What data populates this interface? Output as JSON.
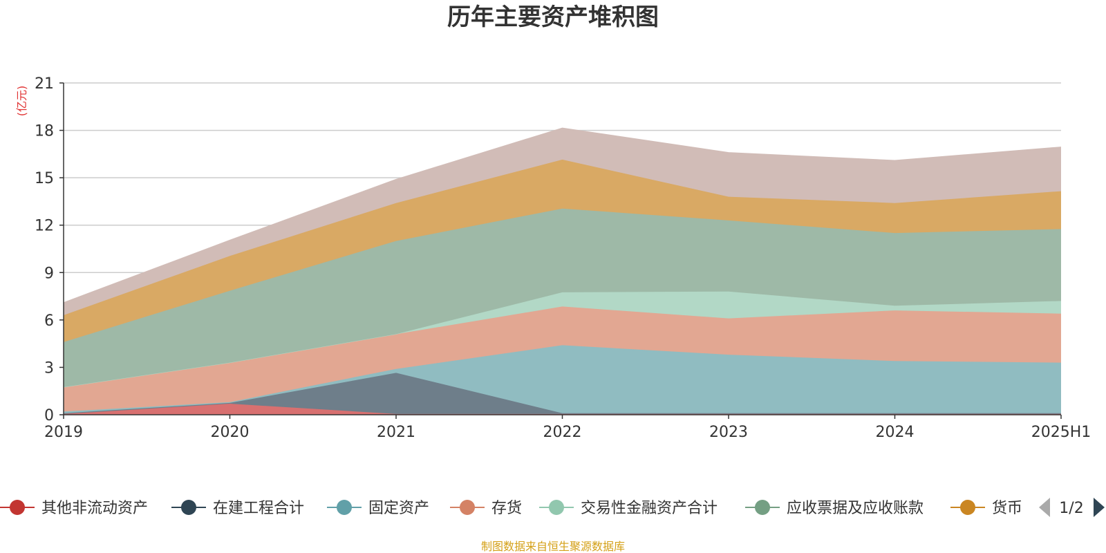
{
  "colors": {
    "grid": "#cccccc",
    "axis": "#333333",
    "unit_label": "#e03030",
    "source_text": "#d4a017",
    "pager_prev": "#aaaaaa",
    "pager_next": "#2f4554"
  },
  "chart_data": {
    "type": "area",
    "stacked": true,
    "title": "历年主要资产堆积图",
    "ylabel": "(亿元)",
    "xlabel": "",
    "categories": [
      "2019",
      "2020",
      "2021",
      "2022",
      "2023",
      "2024",
      "2025H1"
    ],
    "ylim": [
      0,
      21
    ],
    "yticks": [
      0,
      3,
      6,
      9,
      12,
      15,
      18,
      21
    ],
    "grid": true,
    "legend_position": "bottom",
    "series": [
      {
        "name": "其他非流动资产",
        "color": "#c23531",
        "area_color": "#d87070",
        "values": [
          0.05,
          0.7,
          0.05,
          0.05,
          0.05,
          0.05,
          0.05
        ],
        "in_legend": true
      },
      {
        "name": "在建工程合计",
        "color": "#2f4554",
        "area_color": "#6e7e8a",
        "values": [
          0.05,
          0.05,
          2.6,
          0.05,
          0.05,
          0.05,
          0.05
        ],
        "in_legend": true
      },
      {
        "name": "固定资产",
        "color": "#61a0a8",
        "area_color": "#90bcc1",
        "values": [
          0.1,
          0.05,
          0.25,
          4.3,
          3.7,
          3.3,
          3.2
        ],
        "in_legend": true
      },
      {
        "name": "存货",
        "color": "#d48265",
        "area_color": "#e2a792",
        "values": [
          1.55,
          2.5,
          2.2,
          2.45,
          2.3,
          3.2,
          3.1
        ],
        "in_legend": true
      },
      {
        "name": "交易性金融资产合计",
        "color": "#91c7ae",
        "area_color": "#b2d8c6",
        "values": [
          0.0,
          0.0,
          0.0,
          0.9,
          1.7,
          0.3,
          0.8
        ],
        "in_legend": true
      },
      {
        "name": "应收票据及应收账款",
        "color": "#749f83",
        "area_color": "#9eb9a7",
        "values": [
          2.85,
          4.55,
          5.9,
          5.3,
          4.5,
          4.6,
          4.55
        ],
        "in_legend": true
      },
      {
        "name": "货币",
        "color": "#ca8622",
        "area_color": "#d9a964",
        "values": [
          1.7,
          2.2,
          2.4,
          3.1,
          1.5,
          1.9,
          2.4
        ],
        "in_legend": true
      },
      {
        "name": "",
        "color": "#bda29a",
        "area_color": "#d1bcb7",
        "values": [
          0.8,
          1.0,
          1.5,
          2.0,
          2.8,
          2.7,
          2.8
        ],
        "in_legend": false
      }
    ]
  },
  "legend_pager": {
    "label": "1/2"
  },
  "footer": {
    "source": "制图数据来自恒生聚源数据库"
  }
}
